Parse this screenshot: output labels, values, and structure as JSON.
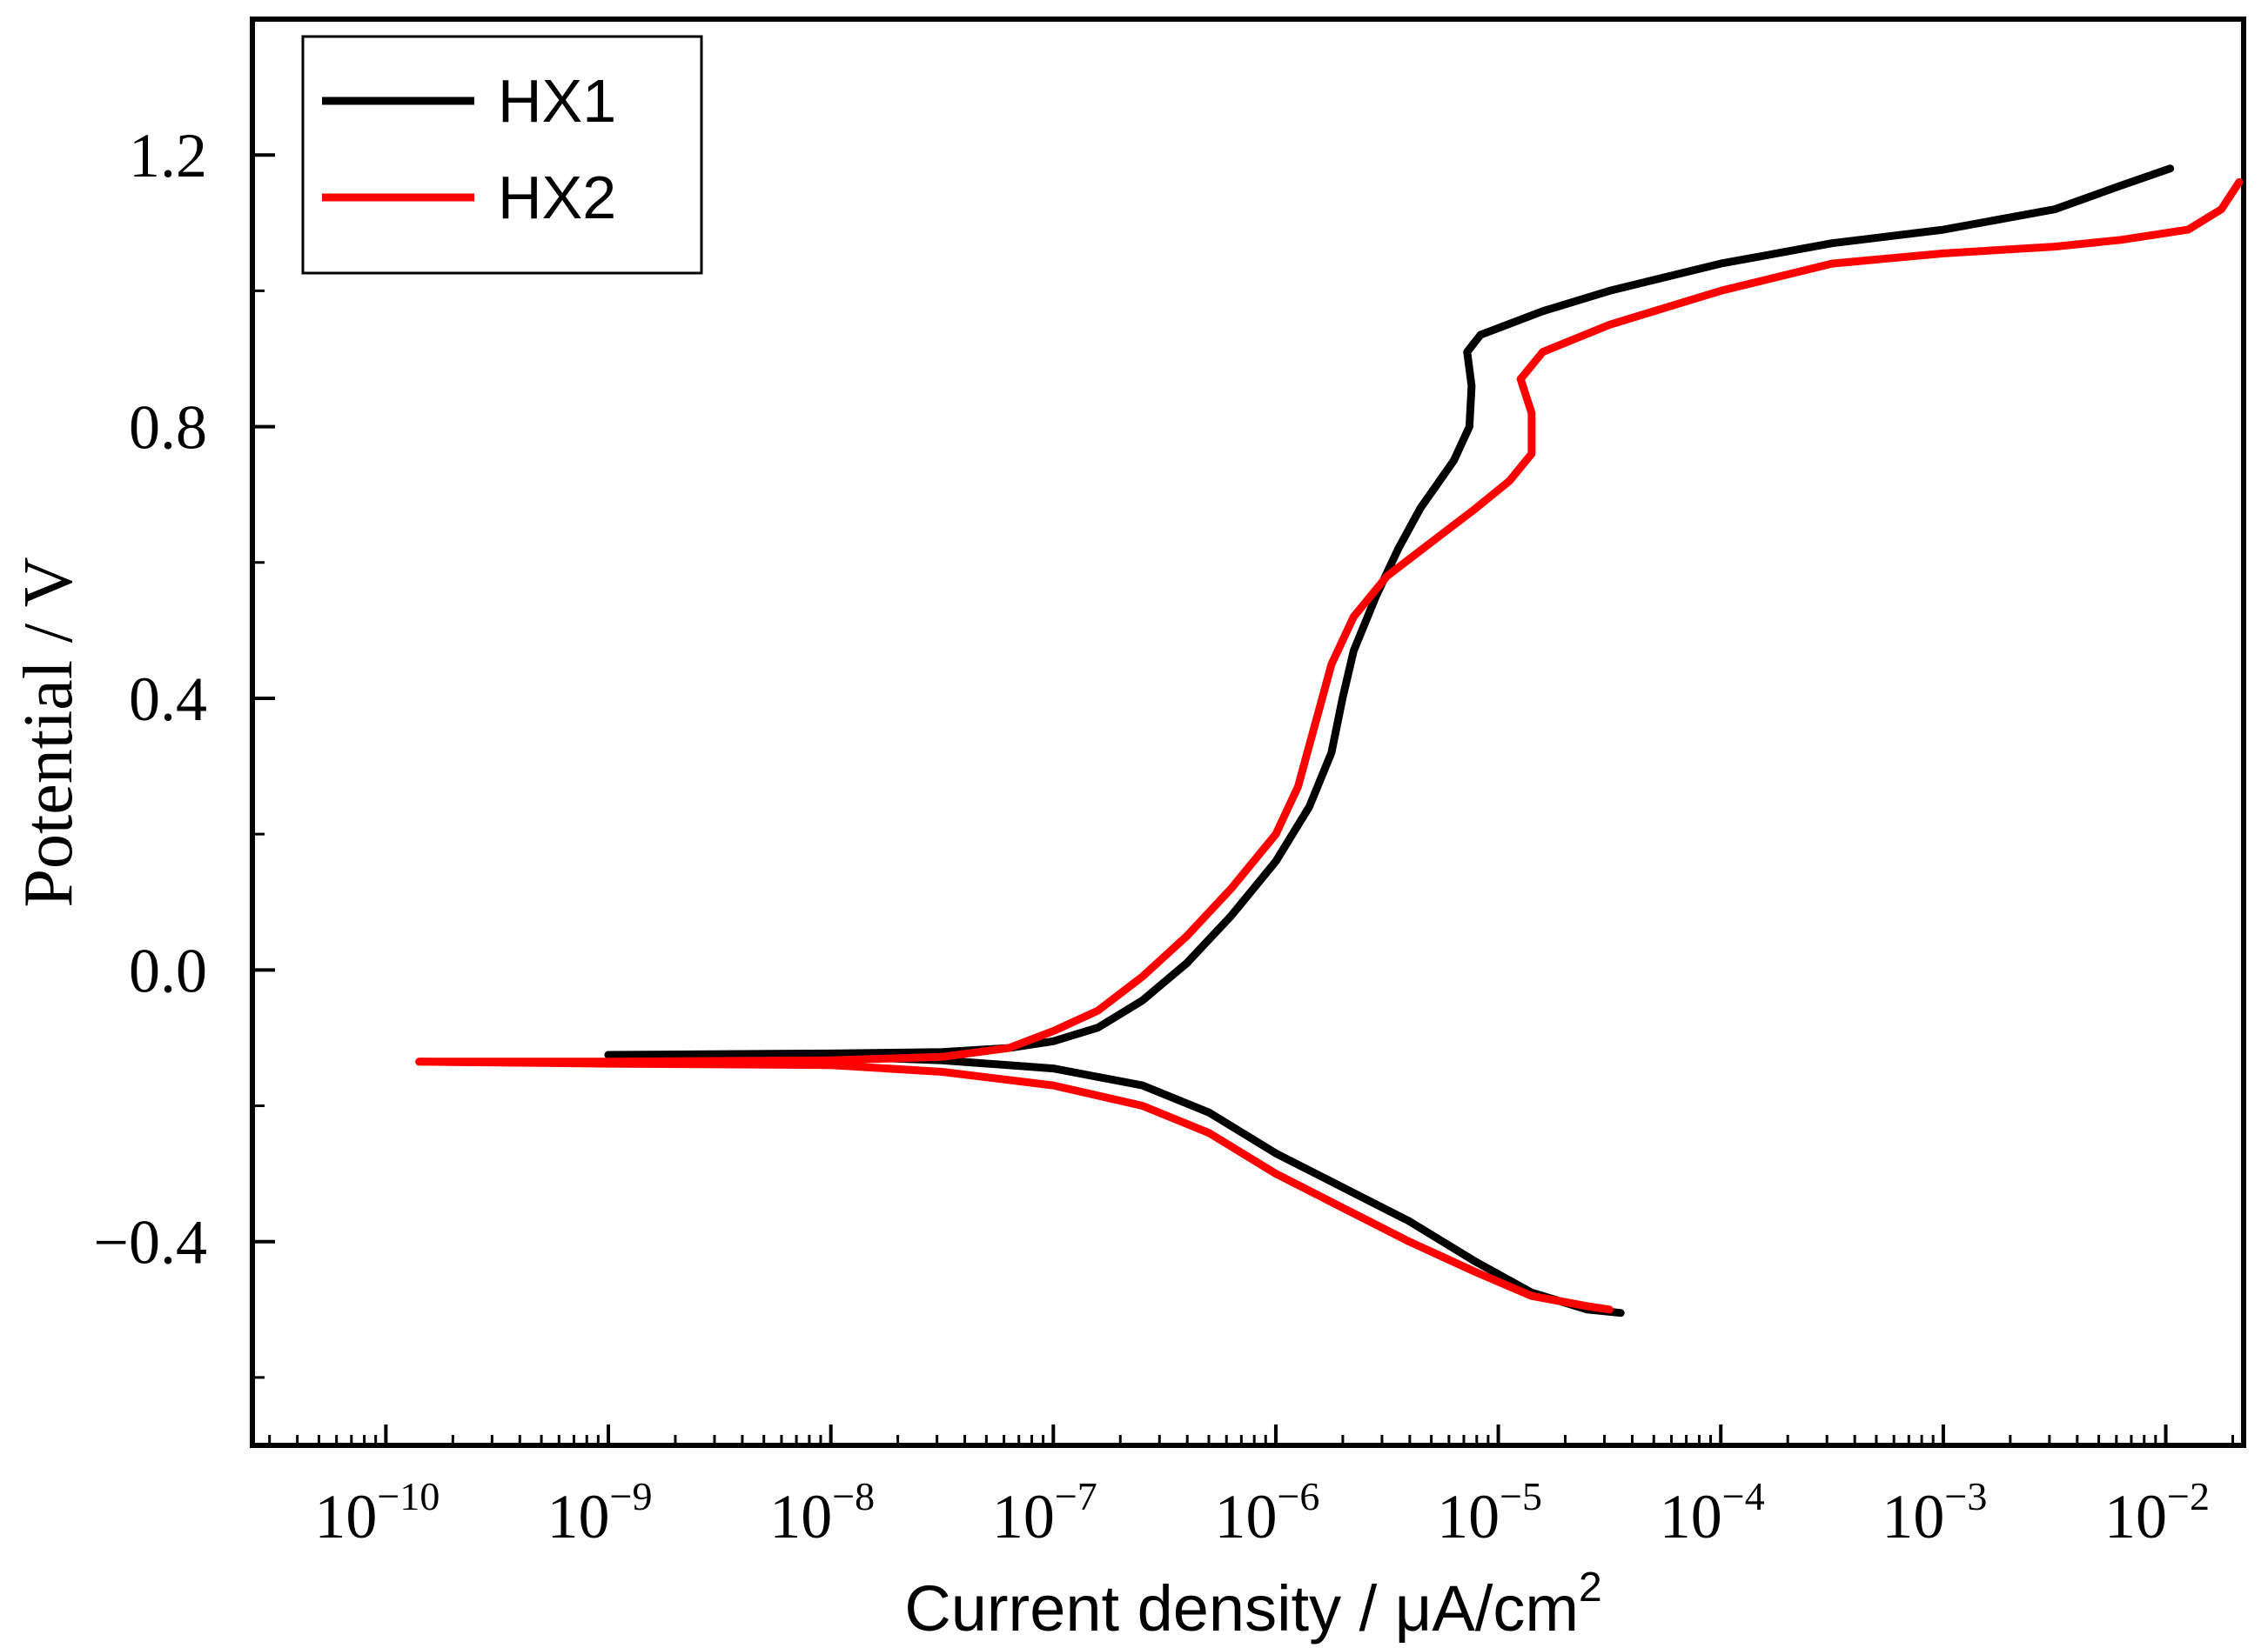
{
  "chart_data": {
    "type": "line",
    "title": "",
    "xlabel": "Current density / μA/cm",
    "xlabel_sup": "2",
    "ylabel": "Potential / V",
    "xscale": "log",
    "xlim_log10": [
      -10.6,
      -1.65
    ],
    "ylim": [
      -0.7,
      1.4
    ],
    "legend_position": "top-left",
    "x_ticks": [
      {
        "base": "10",
        "exp": "−10",
        "log": -10
      },
      {
        "base": "10",
        "exp": "−9",
        "log": -9
      },
      {
        "base": "10",
        "exp": "−8",
        "log": -8
      },
      {
        "base": "10",
        "exp": "−7",
        "log": -7
      },
      {
        "base": "10",
        "exp": "−6",
        "log": -6
      },
      {
        "base": "10",
        "exp": "−5",
        "log": -5
      },
      {
        "base": "10",
        "exp": "−4",
        "log": -4
      },
      {
        "base": "10",
        "exp": "−3",
        "log": -3
      },
      {
        "base": "10",
        "exp": "−2",
        "log": -2
      }
    ],
    "y_ticks": [
      {
        "label": "−0.4",
        "value": -0.4
      },
      {
        "label": "0.0",
        "value": 0.0
      },
      {
        "label": "0.4",
        "value": 0.4
      },
      {
        "label": "0.8",
        "value": 0.8
      },
      {
        "label": "1.2",
        "value": 1.2
      }
    ],
    "series": [
      {
        "name": "HX1",
        "color": "#000000",
        "points_log10x_y": [
          [
            -9.0,
            -0.125
          ],
          [
            -8.0,
            -0.123
          ],
          [
            -7.5,
            -0.121
          ],
          [
            -7.2,
            -0.115
          ],
          [
            -7.0,
            -0.105
          ],
          [
            -6.8,
            -0.085
          ],
          [
            -6.6,
            -0.045
          ],
          [
            -6.4,
            0.01
          ],
          [
            -6.2,
            0.08
          ],
          [
            -6.0,
            0.16
          ],
          [
            -5.85,
            0.24
          ],
          [
            -5.75,
            0.32
          ],
          [
            -5.7,
            0.4
          ],
          [
            -5.65,
            0.47
          ],
          [
            -5.55,
            0.55
          ],
          [
            -5.45,
            0.62
          ],
          [
            -5.35,
            0.68
          ],
          [
            -5.2,
            0.75
          ],
          [
            -5.13,
            0.8
          ],
          [
            -5.12,
            0.86
          ],
          [
            -5.14,
            0.91
          ],
          [
            -5.08,
            0.935
          ],
          [
            -4.8,
            0.97
          ],
          [
            -4.5,
            1.0
          ],
          [
            -4.0,
            1.04
          ],
          [
            -3.5,
            1.07
          ],
          [
            -3.0,
            1.09
          ],
          [
            -2.5,
            1.12
          ],
          [
            -2.2,
            1.155
          ],
          [
            -1.98,
            1.18
          ]
        ],
        "branch2_log10x_y": [
          [
            -9.0,
            -0.125
          ],
          [
            -8.0,
            -0.127
          ],
          [
            -7.5,
            -0.133
          ],
          [
            -7.0,
            -0.145
          ],
          [
            -6.6,
            -0.17
          ],
          [
            -6.3,
            -0.21
          ],
          [
            -6.0,
            -0.27
          ],
          [
            -5.7,
            -0.32
          ],
          [
            -5.4,
            -0.37
          ],
          [
            -5.1,
            -0.43
          ],
          [
            -4.85,
            -0.475
          ],
          [
            -4.6,
            -0.5
          ],
          [
            -4.45,
            -0.505
          ]
        ]
      },
      {
        "name": "HX2",
        "color": "#ff0000",
        "points_log10x_y": [
          [
            -9.85,
            -0.135
          ],
          [
            -9.0,
            -0.135
          ],
          [
            -8.0,
            -0.133
          ],
          [
            -7.5,
            -0.128
          ],
          [
            -7.2,
            -0.115
          ],
          [
            -7.0,
            -0.09
          ],
          [
            -6.8,
            -0.06
          ],
          [
            -6.6,
            -0.01
          ],
          [
            -6.4,
            0.05
          ],
          [
            -6.2,
            0.12
          ],
          [
            -6.0,
            0.2
          ],
          [
            -5.9,
            0.27
          ],
          [
            -5.85,
            0.33
          ],
          [
            -5.8,
            0.39
          ],
          [
            -5.75,
            0.45
          ],
          [
            -5.65,
            0.52
          ],
          [
            -5.5,
            0.58
          ],
          [
            -5.3,
            0.63
          ],
          [
            -5.1,
            0.68
          ],
          [
            -4.95,
            0.72
          ],
          [
            -4.85,
            0.76
          ],
          [
            -4.85,
            0.82
          ],
          [
            -4.9,
            0.87
          ],
          [
            -4.8,
            0.91
          ],
          [
            -4.5,
            0.95
          ],
          [
            -4.0,
            1.0
          ],
          [
            -3.5,
            1.04
          ],
          [
            -3.0,
            1.055
          ],
          [
            -2.5,
            1.065
          ],
          [
            -2.2,
            1.075
          ],
          [
            -1.9,
            1.09
          ],
          [
            -1.75,
            1.12
          ],
          [
            -1.67,
            1.16
          ]
        ],
        "branch2_log10x_y": [
          [
            -9.85,
            -0.135
          ],
          [
            -9.0,
            -0.138
          ],
          [
            -8.0,
            -0.14
          ],
          [
            -7.5,
            -0.15
          ],
          [
            -7.0,
            -0.17
          ],
          [
            -6.6,
            -0.2
          ],
          [
            -6.3,
            -0.24
          ],
          [
            -6.0,
            -0.3
          ],
          [
            -5.7,
            -0.35
          ],
          [
            -5.4,
            -0.4
          ],
          [
            -5.1,
            -0.445
          ],
          [
            -4.85,
            -0.48
          ],
          [
            -4.6,
            -0.495
          ],
          [
            -4.5,
            -0.5
          ]
        ]
      }
    ]
  }
}
